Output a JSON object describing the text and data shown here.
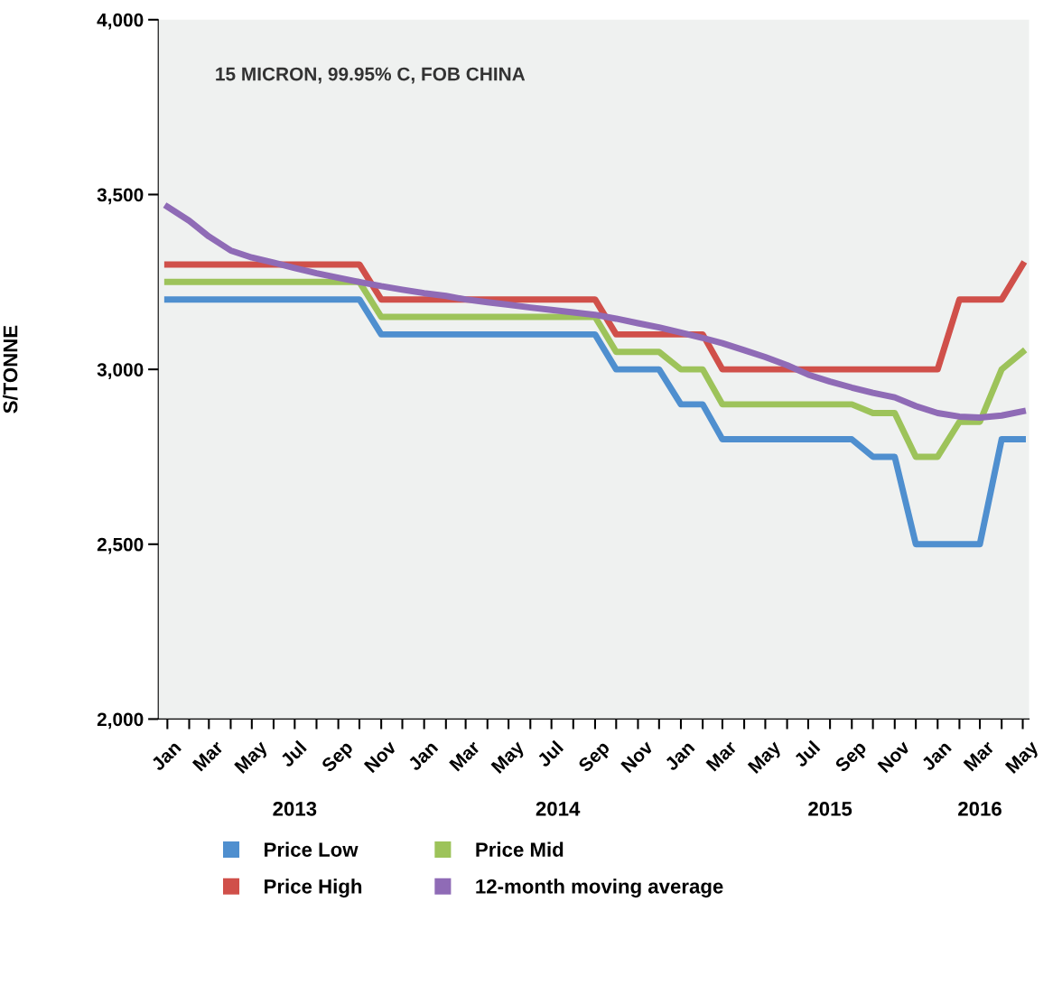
{
  "chart_data": {
    "type": "line",
    "ylabel": "S/TONNE",
    "annotations": [
      "15 MICRON, 99.95% C, FOB CHINA"
    ],
    "x": [
      "2013-01",
      "2013-02",
      "2013-03",
      "2013-04",
      "2013-05",
      "2013-06",
      "2013-07",
      "2013-08",
      "2013-09",
      "2013-10",
      "2013-11",
      "2013-12",
      "2014-01",
      "2014-02",
      "2014-03",
      "2014-04",
      "2014-05",
      "2014-06",
      "2014-07",
      "2014-08",
      "2014-09",
      "2014-10",
      "2014-11",
      "2014-12",
      "2015-01",
      "2015-02",
      "2015-03",
      "2015-04",
      "2015-05",
      "2015-06",
      "2015-07",
      "2015-08",
      "2015-09",
      "2015-10",
      "2015-11",
      "2015-12",
      "2016-01",
      "2016-02",
      "2016-03",
      "2016-04",
      "2016-05"
    ],
    "series": [
      {
        "name": "Price Low",
        "color": "#4f8fcf",
        "values": [
          3200,
          3200,
          3200,
          3200,
          3200,
          3200,
          3200,
          3200,
          3200,
          3200,
          3100,
          3100,
          3100,
          3100,
          3100,
          3100,
          3100,
          3100,
          3100,
          3100,
          3100,
          3000,
          3000,
          3000,
          2900,
          2900,
          2800,
          2800,
          2800,
          2800,
          2800,
          2800,
          2800,
          2750,
          2750,
          2500,
          2500,
          2500,
          2500,
          2800,
          2800
        ]
      },
      {
        "name": "Price High",
        "color": "#d0504a",
        "values": [
          3300,
          3300,
          3300,
          3300,
          3300,
          3300,
          3300,
          3300,
          3300,
          3300,
          3200,
          3200,
          3200,
          3200,
          3200,
          3200,
          3200,
          3200,
          3200,
          3200,
          3200,
          3100,
          3100,
          3100,
          3100,
          3100,
          3000,
          3000,
          3000,
          3000,
          3000,
          3000,
          3000,
          3000,
          3000,
          3000,
          3000,
          3200,
          3200,
          3200,
          3300
        ]
      },
      {
        "name": "Price Mid",
        "color": "#9dc35a",
        "values": [
          3250,
          3250,
          3250,
          3250,
          3250,
          3250,
          3250,
          3250,
          3250,
          3250,
          3150,
          3150,
          3150,
          3150,
          3150,
          3150,
          3150,
          3150,
          3150,
          3150,
          3150,
          3050,
          3050,
          3050,
          3000,
          3000,
          2900,
          2900,
          2900,
          2900,
          2900,
          2900,
          2900,
          2875,
          2875,
          2750,
          2750,
          2850,
          2850,
          3000,
          3050
        ]
      },
      {
        "name": "12-month moving average",
        "color": "#8f6bb6",
        "values": [
          3465,
          3425,
          3380,
          3340,
          3320,
          3305,
          3290,
          3275,
          3262,
          3250,
          3238,
          3228,
          3218,
          3210,
          3200,
          3192,
          3185,
          3177,
          3170,
          3163,
          3156,
          3145,
          3132,
          3120,
          3105,
          3090,
          3075,
          3055,
          3035,
          3012,
          2985,
          2965,
          2948,
          2933,
          2920,
          2895,
          2875,
          2865,
          2862,
          2868,
          2880
        ]
      }
    ],
    "xlim": [
      "2012-12-19",
      "2016-05-10"
    ],
    "xticks": [
      {
        "value": "2013-01",
        "label": "Jan"
      },
      {
        "value": "2013-02",
        "label": null
      },
      {
        "value": "2013-03",
        "label": "Mar"
      },
      {
        "value": "2013-04",
        "label": null
      },
      {
        "value": "2013-05",
        "label": "May"
      },
      {
        "value": "2013-06",
        "label": null
      },
      {
        "value": "2013-07",
        "label": "Jul"
      },
      {
        "value": "2013-08",
        "label": null
      },
      {
        "value": "2013-09",
        "label": "Sep"
      },
      {
        "value": "2013-10",
        "label": null
      },
      {
        "value": "2013-11",
        "label": "Nov"
      },
      {
        "value": "2013-12",
        "label": null
      },
      {
        "value": "2014-01",
        "label": "Jan"
      },
      {
        "value": "2014-02",
        "label": null
      },
      {
        "value": "2014-03",
        "label": "Mar"
      },
      {
        "value": "2014-04",
        "label": null
      },
      {
        "value": "2014-05",
        "label": "May"
      },
      {
        "value": "2014-06",
        "label": null
      },
      {
        "value": "2014-07",
        "label": "Jul"
      },
      {
        "value": "2014-08",
        "label": null
      },
      {
        "value": "2014-09",
        "label": "Sep"
      },
      {
        "value": "2014-10",
        "label": null
      },
      {
        "value": "2014-11",
        "label": "Nov"
      },
      {
        "value": "2014-12",
        "label": null
      },
      {
        "value": "2015-01",
        "label": "Jan"
      },
      {
        "value": "2015-02",
        "label": null
      },
      {
        "value": "2015-03",
        "label": "Mar"
      },
      {
        "value": "2015-04",
        "label": null
      },
      {
        "value": "2015-05",
        "label": "May"
      },
      {
        "value": "2015-06",
        "label": null
      },
      {
        "value": "2015-07",
        "label": "Jul"
      },
      {
        "value": "2015-08",
        "label": null
      },
      {
        "value": "2015-09",
        "label": "Sep"
      },
      {
        "value": "2015-10",
        "label": null
      },
      {
        "value": "2015-11",
        "label": "Nov"
      },
      {
        "value": "2015-12",
        "label": null
      },
      {
        "value": "2016-01",
        "label": "Jan"
      },
      {
        "value": "2016-02",
        "label": null
      },
      {
        "value": "2016-03",
        "label": "Mar"
      },
      {
        "value": "2016-04",
        "label": null
      },
      {
        "value": "2016-05",
        "label": "May"
      }
    ],
    "x2lim": [
      "2012-12-19",
      "2016-05-10"
    ],
    "x2ticks": [
      {
        "value": "2013-07",
        "label": "2013"
      },
      {
        "value": "2014-07-10",
        "label": "2014"
      },
      {
        "value": "2015-08",
        "label": "2015"
      },
      {
        "value": "2016-03",
        "label": "2016"
      }
    ],
    "ylim": [
      2000,
      4000
    ],
    "yticks": [
      {
        "value": 2000,
        "label": "2,000"
      },
      {
        "value": 2500,
        "label": "2,500"
      },
      {
        "value": 3000,
        "label": "3,000"
      },
      {
        "value": 3500,
        "label": "3,500"
      },
      {
        "value": 4000,
        "label": "4,000"
      }
    ],
    "grid": false,
    "legend": "bottom",
    "marker": "none",
    "line_style": "solid"
  }
}
